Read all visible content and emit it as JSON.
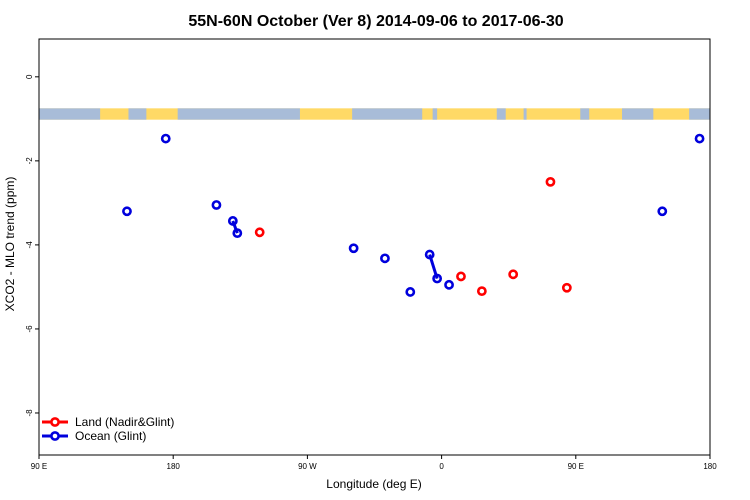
{
  "chart_data": {
    "type": "scatter",
    "title": "55N-60N October (Ver 8)   2014-09-06 to 2017-06-30",
    "xlabel": "Longitude (deg E)",
    "ylabel": "XCO2 - MLO trend (ppm)",
    "xlim": [
      90,
      540
    ],
    "ylim": [
      -9,
      0.9
    ],
    "x_ticks": [
      {
        "value": 90,
        "label": "90 E"
      },
      {
        "value": 180,
        "label": "180"
      },
      {
        "value": 270,
        "label": "90 W"
      },
      {
        "value": 360,
        "label": "0"
      },
      {
        "value": 450,
        "label": "90 E"
      },
      {
        "value": 540,
        "label": "180"
      }
    ],
    "y_ticks": [
      {
        "value": 0,
        "label": "0"
      },
      {
        "value": -2,
        "label": "-2"
      },
      {
        "value": -4,
        "label": "-4"
      },
      {
        "value": -6,
        "label": "-6"
      },
      {
        "value": -8,
        "label": "-8"
      }
    ],
    "map_strip": {
      "y_top": -0.75,
      "y_bottom": -1.02,
      "land_color": "#ffd966",
      "ocean_color": "#a8bcd8"
    },
    "legend_position": "bottom-left",
    "series": [
      {
        "name": "Land (Nadir&Glint)",
        "color": "#ff0000",
        "points": [
          [
            238,
            -3.7
          ],
          [
            373,
            -4.75
          ],
          [
            387,
            -5.1
          ],
          [
            408,
            -4.7
          ],
          [
            433,
            -2.5
          ],
          [
            444,
            -5.02
          ]
        ]
      },
      {
        "name": "Ocean (Glint)",
        "color": "#0000dd",
        "points": [
          [
            149,
            -3.2
          ],
          [
            175,
            -1.47
          ],
          [
            209,
            -3.05
          ],
          [
            220,
            -3.43
          ],
          [
            223,
            -3.72
          ],
          [
            301,
            -4.08
          ],
          [
            322,
            -4.32
          ],
          [
            339,
            -5.12
          ],
          [
            352,
            -4.23
          ],
          [
            357,
            -4.8
          ],
          [
            365,
            -4.95
          ],
          [
            508,
            -3.2
          ],
          [
            533,
            -1.47
          ]
        ]
      }
    ],
    "connected_pairs": [
      {
        "series": 1,
        "from": 3,
        "to": 4
      },
      {
        "series": 1,
        "from": 8,
        "to": 9
      }
    ]
  }
}
